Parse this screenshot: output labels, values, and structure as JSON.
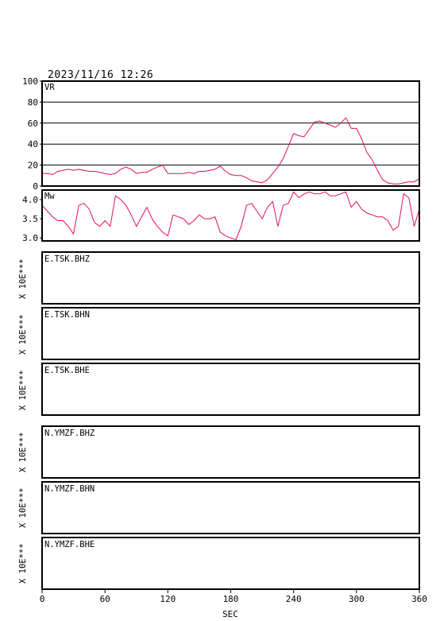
{
  "title": "2023/11/16  12:26",
  "xaxis": {
    "label": "SEC",
    "ticks": [
      "0",
      "60",
      "120",
      "180",
      "240",
      "300",
      "360"
    ]
  },
  "line_color": "#e0105a",
  "chart_data": [
    {
      "type": "line",
      "panel_label": "VR",
      "xlim": [
        0,
        360
      ],
      "ylim": [
        0,
        100
      ],
      "yticks": [
        "0",
        "20",
        "40",
        "60",
        "80",
        "100"
      ],
      "grid": true,
      "x": [
        0,
        5,
        10,
        15,
        20,
        25,
        30,
        35,
        40,
        45,
        50,
        55,
        60,
        65,
        70,
        75,
        80,
        85,
        90,
        95,
        100,
        105,
        110,
        115,
        120,
        125,
        130,
        135,
        140,
        145,
        150,
        155,
        160,
        165,
        170,
        175,
        180,
        185,
        190,
        195,
        200,
        205,
        210,
        215,
        220,
        225,
        230,
        235,
        240,
        245,
        250,
        255,
        260,
        265,
        270,
        275,
        280,
        285,
        290,
        295,
        300,
        305,
        310,
        315,
        320,
        325,
        330,
        335,
        340,
        345,
        350,
        355,
        360
      ],
      "y": [
        12,
        12,
        11,
        14,
        15,
        16,
        15,
        16,
        15,
        14,
        14,
        13,
        12,
        11,
        12,
        16,
        18,
        16,
        12,
        13,
        13,
        16,
        18,
        20,
        12,
        12,
        12,
        12,
        13,
        12,
        14,
        14,
        15,
        16,
        19,
        14,
        11,
        10,
        10,
        8,
        5,
        4,
        3,
        6,
        12,
        18,
        26,
        38,
        50,
        48,
        47,
        54,
        61,
        62,
        60,
        58,
        56,
        60,
        65,
        55,
        55,
        45,
        32,
        25,
        15,
        6,
        3,
        2,
        2,
        3,
        4,
        4,
        7
      ]
    },
    {
      "type": "line",
      "panel_label": "Mw",
      "xlim": [
        0,
        360
      ],
      "ylim": [
        2.92,
        4.25
      ],
      "yticks": [
        "3.0",
        "3.5",
        "4.0"
      ],
      "grid": false,
      "x": [
        0,
        5,
        10,
        15,
        20,
        25,
        30,
        35,
        40,
        45,
        50,
        55,
        60,
        65,
        70,
        75,
        80,
        85,
        90,
        95,
        100,
        105,
        110,
        115,
        120,
        125,
        130,
        135,
        140,
        145,
        150,
        155,
        160,
        165,
        170,
        175,
        180,
        185,
        190,
        195,
        200,
        205,
        210,
        215,
        220,
        225,
        230,
        235,
        240,
        245,
        250,
        255,
        260,
        265,
        270,
        275,
        280,
        285,
        290,
        295,
        300,
        305,
        310,
        315,
        320,
        325,
        330,
        335,
        340,
        345,
        350,
        355,
        360
      ],
      "y": [
        3.85,
        3.7,
        3.55,
        3.45,
        3.45,
        3.3,
        3.1,
        3.85,
        3.9,
        3.75,
        3.4,
        3.3,
        3.45,
        3.3,
        4.1,
        4.0,
        3.85,
        3.6,
        3.3,
        3.55,
        3.8,
        3.5,
        3.3,
        3.15,
        3.05,
        3.6,
        3.55,
        3.5,
        3.35,
        3.45,
        3.6,
        3.5,
        3.5,
        3.55,
        3.15,
        3.05,
        3.0,
        2.95,
        3.3,
        3.85,
        3.9,
        3.7,
        3.5,
        3.8,
        3.95,
        3.3,
        3.85,
        3.9,
        4.2,
        4.05,
        4.15,
        4.2,
        4.15,
        4.15,
        4.2,
        4.1,
        4.1,
        4.15,
        4.2,
        3.8,
        3.95,
        3.75,
        3.65,
        3.6,
        3.55,
        3.55,
        3.45,
        3.2,
        3.3,
        4.15,
        4.05,
        3.3,
        3.75
      ]
    }
  ],
  "waveform_panels": [
    {
      "station": "E.TSK.BHZ",
      "side_label": "X 10E***"
    },
    {
      "station": "E.TSK.BHN",
      "side_label": "X 10E***"
    },
    {
      "station": "E.TSK.BHE",
      "side_label": "X 10E***"
    },
    {
      "station": "N.YMZF.BHZ",
      "side_label": "X 10E***"
    },
    {
      "station": "N.YMZF.BHN",
      "side_label": "X 10E***"
    },
    {
      "station": "N.YMZF.BHE",
      "side_label": "X 10E***"
    }
  ]
}
